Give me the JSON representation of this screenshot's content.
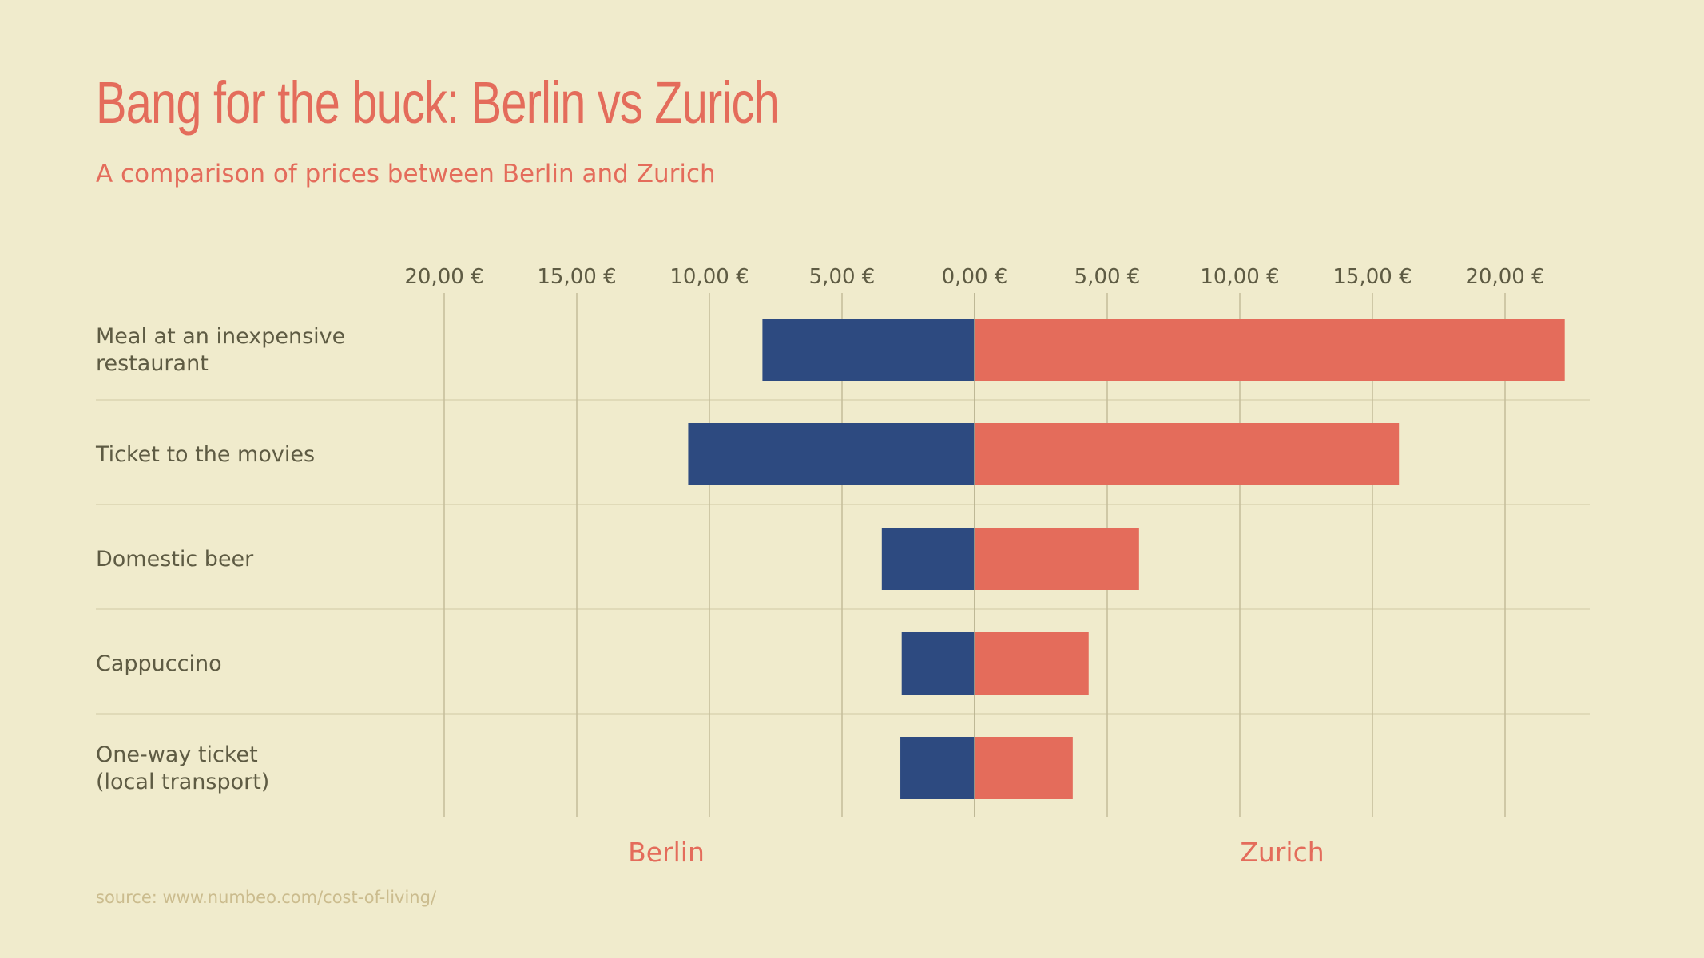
{
  "title": "Bang for the buck: Berlin vs Zurich",
  "subtitle": "A comparison of prices between Berlin and Zurich",
  "source": "source: www.numbeo.com/cost-of-living/",
  "chart_data": {
    "type": "bar",
    "orientation": "horizontal-diverging",
    "categories": [
      [
        "Meal at an inexpensive",
        "restaurant"
      ],
      [
        "Ticket to the movies"
      ],
      [
        "Domestic beer"
      ],
      [
        "Cappuccino"
      ],
      [
        "One-way ticket",
        "(local transport)"
      ]
    ],
    "series": [
      {
        "name": "Berlin",
        "side": "left",
        "color": "#2d4a80",
        "values": [
          8.0,
          10.8,
          3.5,
          2.75,
          2.8
        ]
      },
      {
        "name": "Zurich",
        "side": "right",
        "color": "#e46c5b",
        "values": [
          22.25,
          16.0,
          6.2,
          4.3,
          3.7
        ]
      }
    ],
    "ticks": [
      20,
      15,
      10,
      5,
      0,
      5,
      10,
      15,
      20
    ],
    "tick_labels": [
      "20,00 €",
      "15,00 €",
      "10,00 €",
      "5,00 €",
      "0,00 €",
      "5,00 €",
      "10,00 €",
      "15,00 €",
      "20,00 €"
    ],
    "xlim": [
      -20,
      22.5
    ],
    "axis_position": "top",
    "grid": true
  },
  "colors": {
    "background": "#f0ebcc",
    "accent": "#e46c5b",
    "berlin": "#2d4a80",
    "zurich": "#e46c5b"
  }
}
